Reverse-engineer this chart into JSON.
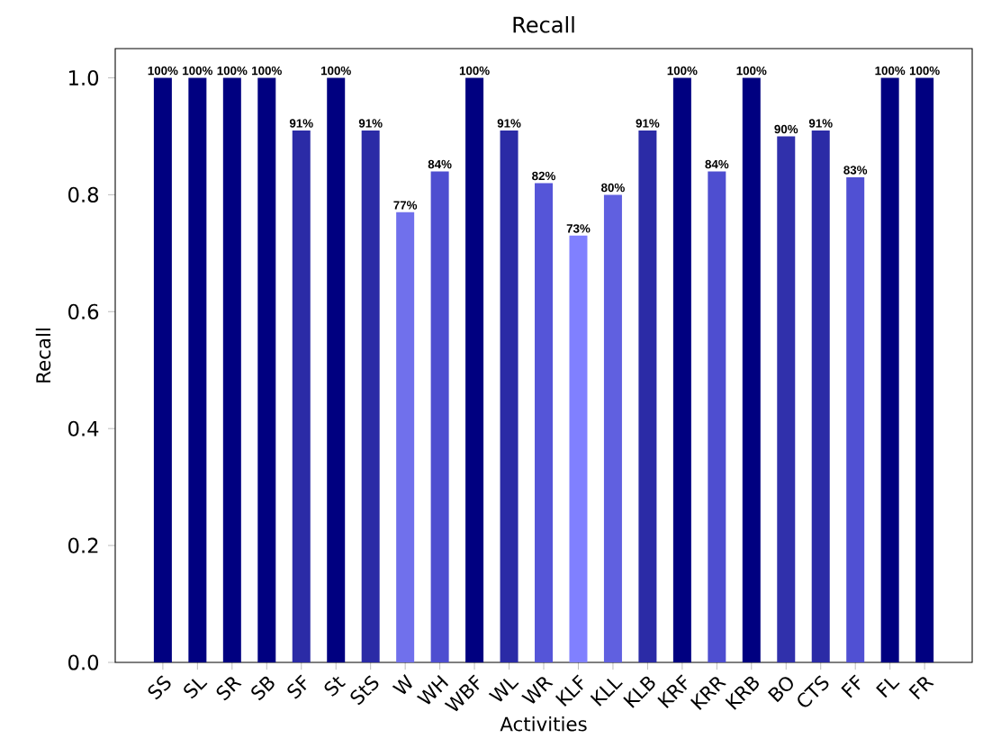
{
  "chart_data": {
    "type": "bar",
    "title": "Recall",
    "xlabel": "Activities",
    "ylabel": "Recall",
    "categories": [
      "SS",
      "SL",
      "SR",
      "SB",
      "SF",
      "St",
      "StS",
      "W",
      "WH",
      "WBF",
      "WL",
      "WR",
      "KLF",
      "KLL",
      "KLB",
      "KRF",
      "KRR",
      "KRB",
      "BO",
      "CTS",
      "FF",
      "FL",
      "FR"
    ],
    "values": [
      1.0,
      1.0,
      1.0,
      1.0,
      0.91,
      1.0,
      0.91,
      0.77,
      0.84,
      1.0,
      0.91,
      0.82,
      0.73,
      0.8,
      0.91,
      1.0,
      0.84,
      1.0,
      0.9,
      0.91,
      0.83,
      1.0,
      1.0
    ],
    "value_labels": [
      "100%",
      "100%",
      "100%",
      "100%",
      "91%",
      "100%",
      "91%",
      "77%",
      "84%",
      "100%",
      "91%",
      "82%",
      "73%",
      "80%",
      "91%",
      "100%",
      "84%",
      "100%",
      "90%",
      "91%",
      "83%",
      "100%",
      "100%"
    ],
    "colors": [
      "#000080",
      "#000080",
      "#000080",
      "#000080",
      "#2b2ba6",
      "#000080",
      "#2b2ba6",
      "#7070ec",
      "#4e4ed0",
      "#000080",
      "#2b2ba6",
      "#5555d8",
      "#8080ff",
      "#6060e0",
      "#2b2ba6",
      "#000080",
      "#4e4ed0",
      "#000080",
      "#3030ab",
      "#2b2ba6",
      "#5050d3",
      "#000080",
      "#000080"
    ],
    "ylim": [
      0,
      1.05
    ],
    "yticks": [
      {
        "value": 0,
        "label": "0.0"
      },
      {
        "value": 0.2,
        "label": "0.2"
      },
      {
        "value": 0.4,
        "label": "0.4"
      },
      {
        "value": 0.6,
        "label": "0.6"
      },
      {
        "value": 0.8,
        "label": "0.8"
      },
      {
        "value": 1.0,
        "label": "1.0"
      }
    ],
    "grid": false
  }
}
